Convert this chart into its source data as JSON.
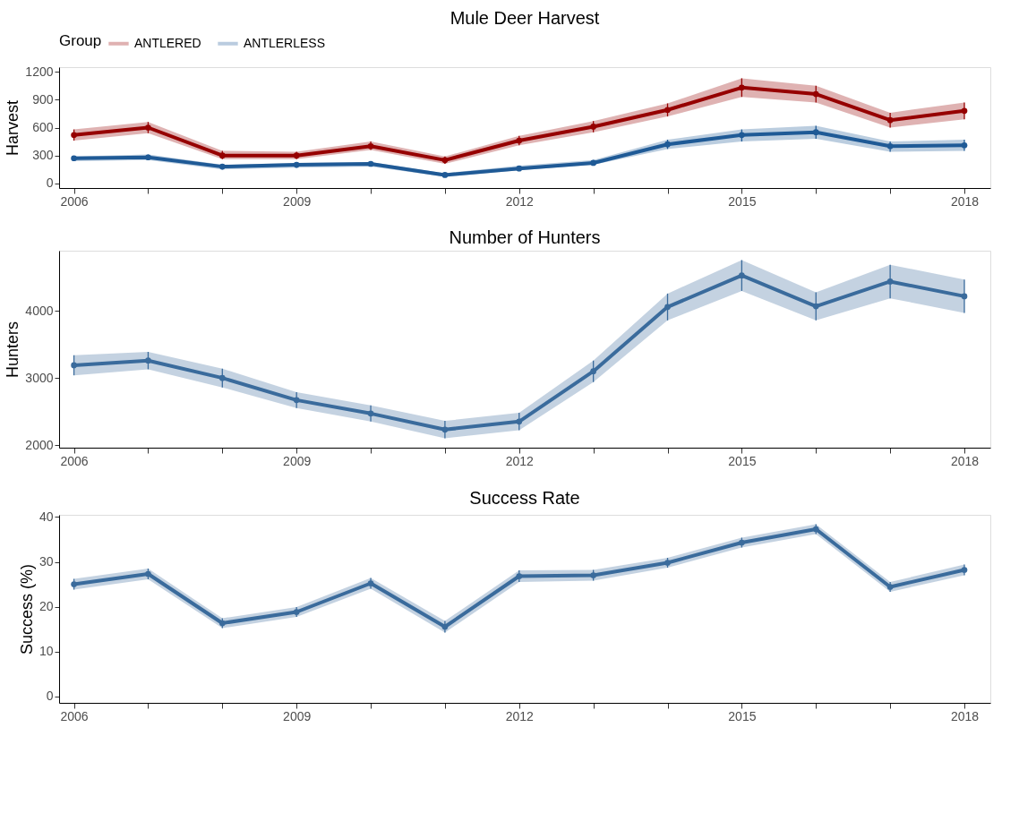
{
  "chart_data": [
    {
      "type": "line",
      "title": "Mule Deer Harvest",
      "ylabel": "Harvest",
      "legend_title": "Group",
      "legend": "top",
      "marker": "circle",
      "line_style": "solid",
      "grid": false,
      "x": [
        2006,
        2007,
        2008,
        2009,
        2010,
        2011,
        2012,
        2013,
        2014,
        2015,
        2016,
        2017,
        2018
      ],
      "xlim": [
        2005.8,
        2018.35
      ],
      "xticks": [
        2006,
        {
          "value": 2007,
          "label": null
        },
        {
          "value": 2008,
          "label": null
        },
        2009,
        {
          "value": 2010,
          "label": null
        },
        {
          "value": 2011,
          "label": null
        },
        2012,
        {
          "value": 2013,
          "label": null
        },
        {
          "value": 2014,
          "label": null
        },
        2015,
        {
          "value": 2016,
          "label": null
        },
        {
          "value": 2017,
          "label": null
        },
        2018
      ],
      "ylim": [
        -50,
        1250
      ],
      "yticks": [
        0,
        300,
        600,
        900,
        1200
      ],
      "series": [
        {
          "name": "ANTLERED",
          "color": "#960000",
          "values": [
            520,
            600,
            300,
            300,
            400,
            250,
            460,
            610,
            790,
            1030,
            960,
            680,
            780
          ],
          "lower": [
            460,
            540,
            260,
            260,
            360,
            210,
            410,
            550,
            720,
            930,
            870,
            600,
            690
          ],
          "upper": [
            580,
            660,
            350,
            340,
            450,
            290,
            510,
            670,
            860,
            1130,
            1050,
            760,
            870
          ],
          "errors": [
            [
              460,
              580
            ],
            [
              540,
              660
            ],
            [
              260,
              350
            ],
            [
              260,
              340
            ],
            [
              360,
              450
            ],
            [
              210,
              290
            ],
            [
              410,
              510
            ],
            [
              550,
              670
            ],
            [
              720,
              860
            ],
            [
              930,
              1130
            ],
            [
              870,
              1050
            ],
            [
              600,
              760
            ],
            [
              690,
              870
            ]
          ]
        },
        {
          "name": "ANTLERLESS",
          "color": "#1f5a96",
          "values": [
            270,
            280,
            180,
            200,
            210,
            90,
            160,
            220,
            420,
            520,
            550,
            400,
            410
          ],
          "lower": [
            240,
            250,
            150,
            170,
            180,
            70,
            140,
            200,
            370,
            450,
            480,
            340,
            350
          ],
          "upper": [
            290,
            310,
            200,
            220,
            230,
            110,
            190,
            250,
            470,
            580,
            620,
            450,
            470
          ],
          "errors": [
            [
              240,
              290
            ],
            [
              250,
              310
            ],
            [
              150,
              200
            ],
            [
              170,
              220
            ],
            [
              180,
              230
            ],
            [
              70,
              110
            ],
            [
              140,
              190
            ],
            [
              200,
              250
            ],
            [
              370,
              470
            ],
            [
              450,
              580
            ],
            [
              480,
              620
            ],
            [
              340,
              450
            ],
            [
              350,
              470
            ]
          ]
        }
      ]
    },
    {
      "type": "line",
      "title": "Number of Hunters",
      "ylabel": "Hunters",
      "marker": "circle",
      "line_style": "solid",
      "grid": false,
      "x": [
        2006,
        2007,
        2008,
        2009,
        2010,
        2011,
        2012,
        2013,
        2014,
        2015,
        2016,
        2017,
        2018
      ],
      "xlim": [
        2005.8,
        2018.35
      ],
      "xticks": [
        2006,
        {
          "value": 2007,
          "label": null
        },
        {
          "value": 2008,
          "label": null
        },
        2009,
        {
          "value": 2010,
          "label": null
        },
        {
          "value": 2011,
          "label": null
        },
        2012,
        {
          "value": 2013,
          "label": null
        },
        {
          "value": 2014,
          "label": null
        },
        2015,
        {
          "value": 2016,
          "label": null
        },
        {
          "value": 2017,
          "label": null
        },
        2018
      ],
      "ylim": [
        1960,
        4900
      ],
      "yticks": [
        2000,
        3000,
        4000
      ],
      "series": [
        {
          "color": "#3a6b9c",
          "values": [
            3190,
            3260,
            3000,
            2670,
            2470,
            2230,
            2350,
            3100,
            4060,
            4530,
            4070,
            4440,
            4220
          ],
          "lower": [
            3040,
            3130,
            2860,
            2550,
            2350,
            2100,
            2220,
            2940,
            3860,
            4300,
            3860,
            4190,
            3970
          ],
          "upper": [
            3340,
            3390,
            3140,
            2790,
            2590,
            2360,
            2480,
            3260,
            4260,
            4760,
            4280,
            4690,
            4470
          ],
          "errors": [
            [
              3040,
              3340
            ],
            [
              3130,
              3390
            ],
            [
              2860,
              3140
            ],
            [
              2550,
              2790
            ],
            [
              2350,
              2590
            ],
            [
              2100,
              2360
            ],
            [
              2220,
              2480
            ],
            [
              2940,
              3260
            ],
            [
              3860,
              4260
            ],
            [
              4300,
              4760
            ],
            [
              3860,
              4280
            ],
            [
              4190,
              4690
            ],
            [
              3970,
              4470
            ]
          ]
        }
      ]
    },
    {
      "type": "line",
      "title": "Success Rate",
      "ylabel": "Success (%)",
      "marker": "circle",
      "line_style": "solid",
      "grid": false,
      "x": [
        2006,
        2007,
        2008,
        2009,
        2010,
        2011,
        2012,
        2013,
        2014,
        2015,
        2016,
        2017,
        2018
      ],
      "xlim": [
        2005.8,
        2018.35
      ],
      "xticks": [
        2006,
        {
          "value": 2007,
          "label": null
        },
        {
          "value": 2008,
          "label": null
        },
        2009,
        {
          "value": 2010,
          "label": null
        },
        {
          "value": 2011,
          "label": null
        },
        2012,
        {
          "value": 2013,
          "label": null
        },
        {
          "value": 2014,
          "label": null
        },
        2015,
        {
          "value": 2016,
          "label": null
        },
        {
          "value": 2017,
          "label": null
        },
        2018
      ],
      "ylim": [
        -1.5,
        40.5
      ],
      "yticks": [
        0,
        10,
        20,
        30,
        40
      ],
      "series": [
        {
          "color": "#3a6b9c",
          "values": [
            25,
            27.3,
            16.3,
            18.8,
            25.2,
            15.5,
            26.8,
            27,
            29.8,
            34.3,
            37.3,
            24.4,
            28.2
          ],
          "lower": [
            23.8,
            26.1,
            15.2,
            17.7,
            24,
            14.2,
            25.5,
            25.8,
            28.7,
            33.2,
            36.2,
            23.3,
            27
          ],
          "upper": [
            26.2,
            28.5,
            17.4,
            19.9,
            26.4,
            16.8,
            28.1,
            28.2,
            30.9,
            35.4,
            38.4,
            25.5,
            29.4
          ],
          "errors": [
            [
              23.8,
              26.2
            ],
            [
              26.1,
              28.5
            ],
            [
              15.2,
              17.4
            ],
            [
              17.7,
              19.9
            ],
            [
              24,
              26.4
            ],
            [
              14.2,
              16.8
            ],
            [
              25.5,
              28.1
            ],
            [
              25.8,
              28.2
            ],
            [
              28.7,
              30.9
            ],
            [
              33.2,
              35.4
            ],
            [
              36.2,
              38.4
            ],
            [
              23.3,
              25.5
            ],
            [
              27,
              29.4
            ]
          ]
        }
      ]
    }
  ]
}
